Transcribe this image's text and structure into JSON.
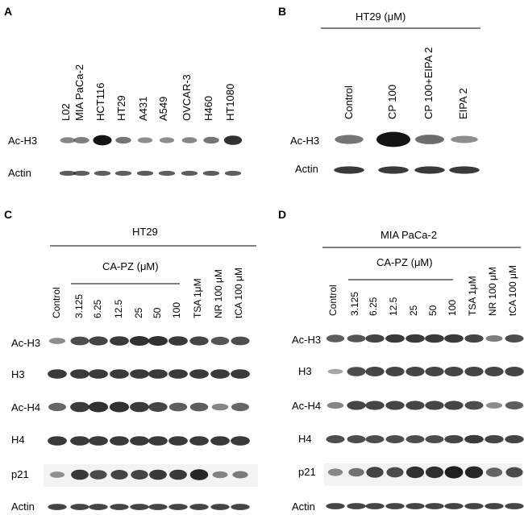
{
  "panels": {
    "A": {
      "letter": "A",
      "lanes": [
        "L02",
        "MIA PaCa-2",
        "HCT116",
        "HT29",
        "A431",
        "A549",
        "OVCAR-3",
        "H460",
        "HT1080"
      ],
      "rows": [
        "Ac-H3",
        "Actin"
      ],
      "bands": {
        "Ac-H3": [
          0.35,
          0.4,
          1.0,
          0.45,
          0.3,
          0.3,
          0.35,
          0.45,
          0.85
        ],
        "Actin": [
          0.6,
          0.6,
          0.6,
          0.6,
          0.6,
          0.6,
          0.6,
          0.6,
          0.6
        ]
      }
    },
    "B": {
      "letter": "B",
      "header": "HT29  (μM)",
      "lanes": [
        "Control",
        "CP 100",
        "CP 100+EIPA 2",
        "EIPA 2"
      ],
      "rows": [
        "Ac-H3",
        "Actin"
      ],
      "bands": {
        "Ac-H3": [
          0.45,
          1.0,
          0.5,
          0.3
        ],
        "Actin": [
          0.8,
          0.8,
          0.8,
          0.8
        ]
      }
    },
    "C": {
      "letter": "C",
      "header": "HT29",
      "subheader": "CA-PZ (μM)",
      "lanes": [
        "Control",
        "3.125",
        "6.25",
        "12.5",
        "25",
        "50",
        "100",
        "TSA 1μM",
        "NR 100 μM",
        "tCA 100 μM"
      ],
      "rows": [
        "Ac-H3",
        "H3",
        "Ac-H4",
        "H4",
        "p21",
        "Actin"
      ],
      "bands": {
        "Ac-H3": [
          0.3,
          0.7,
          0.75,
          0.8,
          0.85,
          0.85,
          0.8,
          0.75,
          0.65,
          0.7
        ],
        "H3": [
          0.8,
          0.8,
          0.8,
          0.8,
          0.8,
          0.8,
          0.8,
          0.8,
          0.8,
          0.8
        ],
        "Ac-H4": [
          0.55,
          0.8,
          0.85,
          0.85,
          0.8,
          0.75,
          0.6,
          0.6,
          0.35,
          0.55
        ],
        "H4": [
          0.8,
          0.8,
          0.8,
          0.8,
          0.8,
          0.8,
          0.8,
          0.8,
          0.8,
          0.8
        ],
        "p21": [
          0.25,
          0.8,
          0.7,
          0.75,
          0.75,
          0.8,
          0.8,
          0.9,
          0.35,
          0.4
        ],
        "Actin": [
          0.75,
          0.75,
          0.75,
          0.75,
          0.75,
          0.75,
          0.75,
          0.75,
          0.75,
          0.75
        ]
      }
    },
    "D": {
      "letter": "D",
      "header": "MIA PaCa-2",
      "subheader": "CA-PZ (μM)",
      "lanes": [
        "Control",
        "3.125",
        "6.25",
        "12.5",
        "25",
        "50",
        "100",
        "TSA 1μM",
        "NR 100 μM",
        "tCA 100 μM"
      ],
      "rows": [
        "Ac-H3",
        "H3",
        "Ac-H4",
        "H4",
        "p21",
        "Actin"
      ],
      "bands": {
        "Ac-H3": [
          0.6,
          0.65,
          0.75,
          0.8,
          0.8,
          0.8,
          0.8,
          0.75,
          0.4,
          0.7
        ],
        "H3": [
          0.1,
          0.7,
          0.75,
          0.75,
          0.75,
          0.75,
          0.75,
          0.75,
          0.75,
          0.75
        ],
        "Ac-H4": [
          0.35,
          0.75,
          0.75,
          0.75,
          0.75,
          0.75,
          0.75,
          0.7,
          0.3,
          0.6
        ],
        "H4": [
          0.7,
          0.7,
          0.7,
          0.7,
          0.7,
          0.7,
          0.75,
          0.8,
          0.75,
          0.75
        ],
        "p21": [
          0.3,
          0.45,
          0.75,
          0.7,
          0.85,
          0.85,
          0.95,
          0.9,
          0.55,
          0.7
        ],
        "Actin": [
          0.75,
          0.75,
          0.75,
          0.75,
          0.75,
          0.75,
          0.75,
          0.75,
          0.75,
          0.75
        ]
      }
    }
  }
}
